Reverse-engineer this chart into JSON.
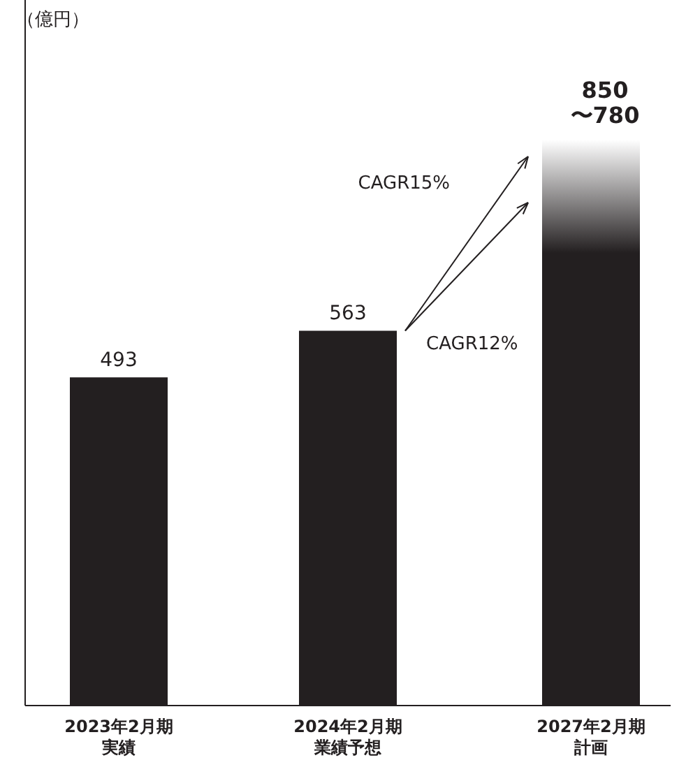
{
  "chart_data": {
    "type": "bar",
    "categories": [
      "2023年2月期実績",
      "2024年2月期業績予想",
      "2027年2月期計画"
    ],
    "series": [
      {
        "color": "#231f20",
        "values": [
          493,
          563,
          850
        ],
        "value_labels": [
          "493",
          "563",
          "850\n〜780"
        ]
      }
    ],
    "annotations": [
      "（億円）",
      "CAGR15%",
      "CAGR12%"
    ]
  }
}
